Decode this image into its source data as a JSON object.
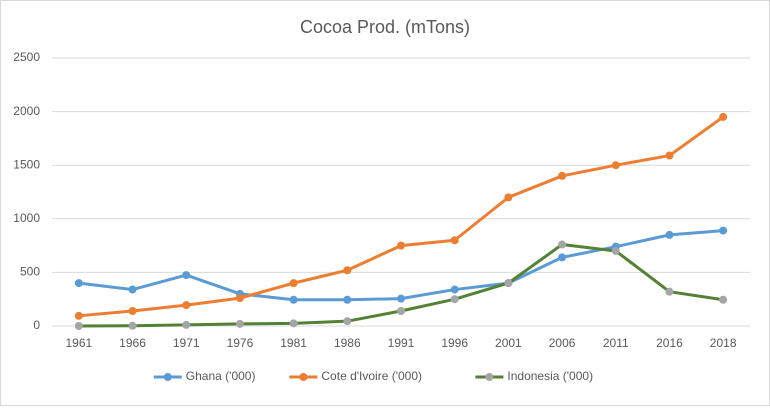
{
  "chart_data": {
    "type": "line",
    "title": "Cocoa Prod. (mTons)",
    "categories": [
      "1961",
      "1966",
      "1971",
      "1976",
      "1981",
      "1986",
      "1991",
      "1996",
      "2001",
      "2006",
      "2011",
      "2016",
      "2018"
    ],
    "series": [
      {
        "name": "Ghana ('000)",
        "color": "#5b9bd5",
        "marker_color": "#5b9bd5",
        "values": [
          400,
          340,
          475,
          300,
          245,
          245,
          255,
          340,
          400,
          640,
          740,
          850,
          890
        ]
      },
      {
        "name": "Cote d'Ivoire ('000)",
        "color": "#ed7d31",
        "marker_color": "#ed7d31",
        "values": [
          95,
          140,
          195,
          260,
          400,
          520,
          750,
          800,
          1200,
          1400,
          1500,
          1590,
          1950
        ]
      },
      {
        "name": "Indonesia ('000)",
        "color": "#548235",
        "marker_color": "#a5a5a5",
        "values": [
          0,
          2,
          10,
          20,
          25,
          45,
          140,
          250,
          400,
          760,
          700,
          320,
          245
        ]
      }
    ],
    "ylim": [
      0,
      2500
    ],
    "yticks": [
      0,
      500,
      1000,
      1500,
      2000,
      2500
    ],
    "grid": true,
    "legend": "bottom"
  }
}
